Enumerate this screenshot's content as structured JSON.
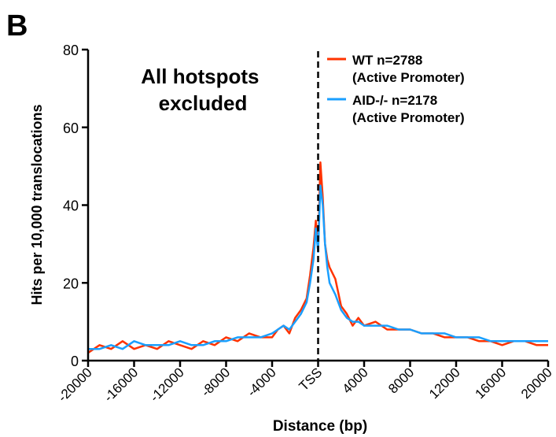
{
  "chart_data": {
    "type": "line",
    "panel_label": "B",
    "title": "",
    "annotation": [
      "All hotspots",
      "excluded"
    ],
    "xlabel": "Distance (bp)",
    "ylabel": "Hits per 10,000 translocations",
    "xlim": [
      -20000,
      20000
    ],
    "ylim": [
      0,
      80
    ],
    "x_ticks": [
      {
        "value": -20000,
        "label": "-20000"
      },
      {
        "value": -16000,
        "label": "-16000"
      },
      {
        "value": -12000,
        "label": "-12000"
      },
      {
        "value": -8000,
        "label": "-8000"
      },
      {
        "value": -4000,
        "label": "-4000"
      },
      {
        "value": 0,
        "label": "TSS"
      },
      {
        "value": 4000,
        "label": "4000"
      },
      {
        "value": 8000,
        "label": "8000"
      },
      {
        "value": 12000,
        "label": "12000"
      },
      {
        "value": 16000,
        "label": "16000"
      },
      {
        "value": 20000,
        "label": "20000"
      }
    ],
    "y_ticks": [
      {
        "value": 0,
        "label": "0"
      },
      {
        "value": 20,
        "label": "20"
      },
      {
        "value": 40,
        "label": "40"
      },
      {
        "value": 60,
        "label": "60"
      },
      {
        "value": 80,
        "label": "80"
      }
    ],
    "reference_line": {
      "x": 0,
      "style": "dashed",
      "color": "#000000"
    },
    "legend_position": "top-right",
    "grid": false,
    "series": [
      {
        "name": "WT n=2788",
        "name_line2": "(Active Promoter)",
        "color": "#ff3300",
        "x": [
          -20000,
          -19000,
          -18000,
          -17000,
          -16000,
          -15000,
          -14000,
          -13000,
          -12000,
          -11000,
          -10000,
          -9000,
          -8000,
          -7000,
          -6000,
          -5000,
          -4000,
          -3500,
          -3000,
          -2500,
          -2000,
          -1500,
          -1000,
          -700,
          -400,
          -200,
          0,
          200,
          400,
          600,
          800,
          1000,
          1500,
          2000,
          2500,
          3000,
          3500,
          4000,
          5000,
          6000,
          7000,
          8000,
          9000,
          10000,
          11000,
          12000,
          13000,
          14000,
          15000,
          16000,
          17000,
          18000,
          19000,
          20000
        ],
        "y": [
          2,
          4,
          3,
          5,
          3,
          4,
          3,
          5,
          4,
          3,
          5,
          4,
          6,
          5,
          7,
          6,
          6,
          8,
          9,
          7,
          11,
          13,
          16,
          22,
          29,
          36,
          28,
          51,
          42,
          30,
          26,
          24,
          21,
          14,
          12,
          9,
          11,
          9,
          10,
          8,
          8,
          8,
          7,
          7,
          6,
          6,
          6,
          5,
          5,
          4,
          5,
          5,
          4,
          4
        ]
      },
      {
        "name": "AID-/- n=2178",
        "name_line2": "(Active Promoter)",
        "color": "#1a9fff",
        "x": [
          -20000,
          -19000,
          -18000,
          -17000,
          -16000,
          -15000,
          -14000,
          -13000,
          -12000,
          -11000,
          -10000,
          -9000,
          -8000,
          -7000,
          -6000,
          -5000,
          -4000,
          -3500,
          -3000,
          -2500,
          -2000,
          -1500,
          -1000,
          -700,
          -400,
          -200,
          0,
          200,
          400,
          600,
          800,
          1000,
          1500,
          2000,
          2500,
          3000,
          3500,
          4000,
          5000,
          6000,
          7000,
          8000,
          9000,
          10000,
          11000,
          12000,
          13000,
          14000,
          15000,
          16000,
          17000,
          18000,
          19000,
          20000
        ],
        "y": [
          3,
          3,
          4,
          3,
          5,
          4,
          4,
          4,
          5,
          4,
          4,
          5,
          5,
          6,
          6,
          6,
          7,
          8,
          9,
          8,
          10,
          12,
          15,
          20,
          26,
          34,
          28,
          45,
          40,
          30,
          24,
          20,
          17,
          13,
          11,
          10,
          10,
          9,
          9,
          9,
          8,
          8,
          7,
          7,
          7,
          6,
          6,
          6,
          5,
          5,
          5,
          5,
          5,
          5
        ]
      }
    ]
  }
}
